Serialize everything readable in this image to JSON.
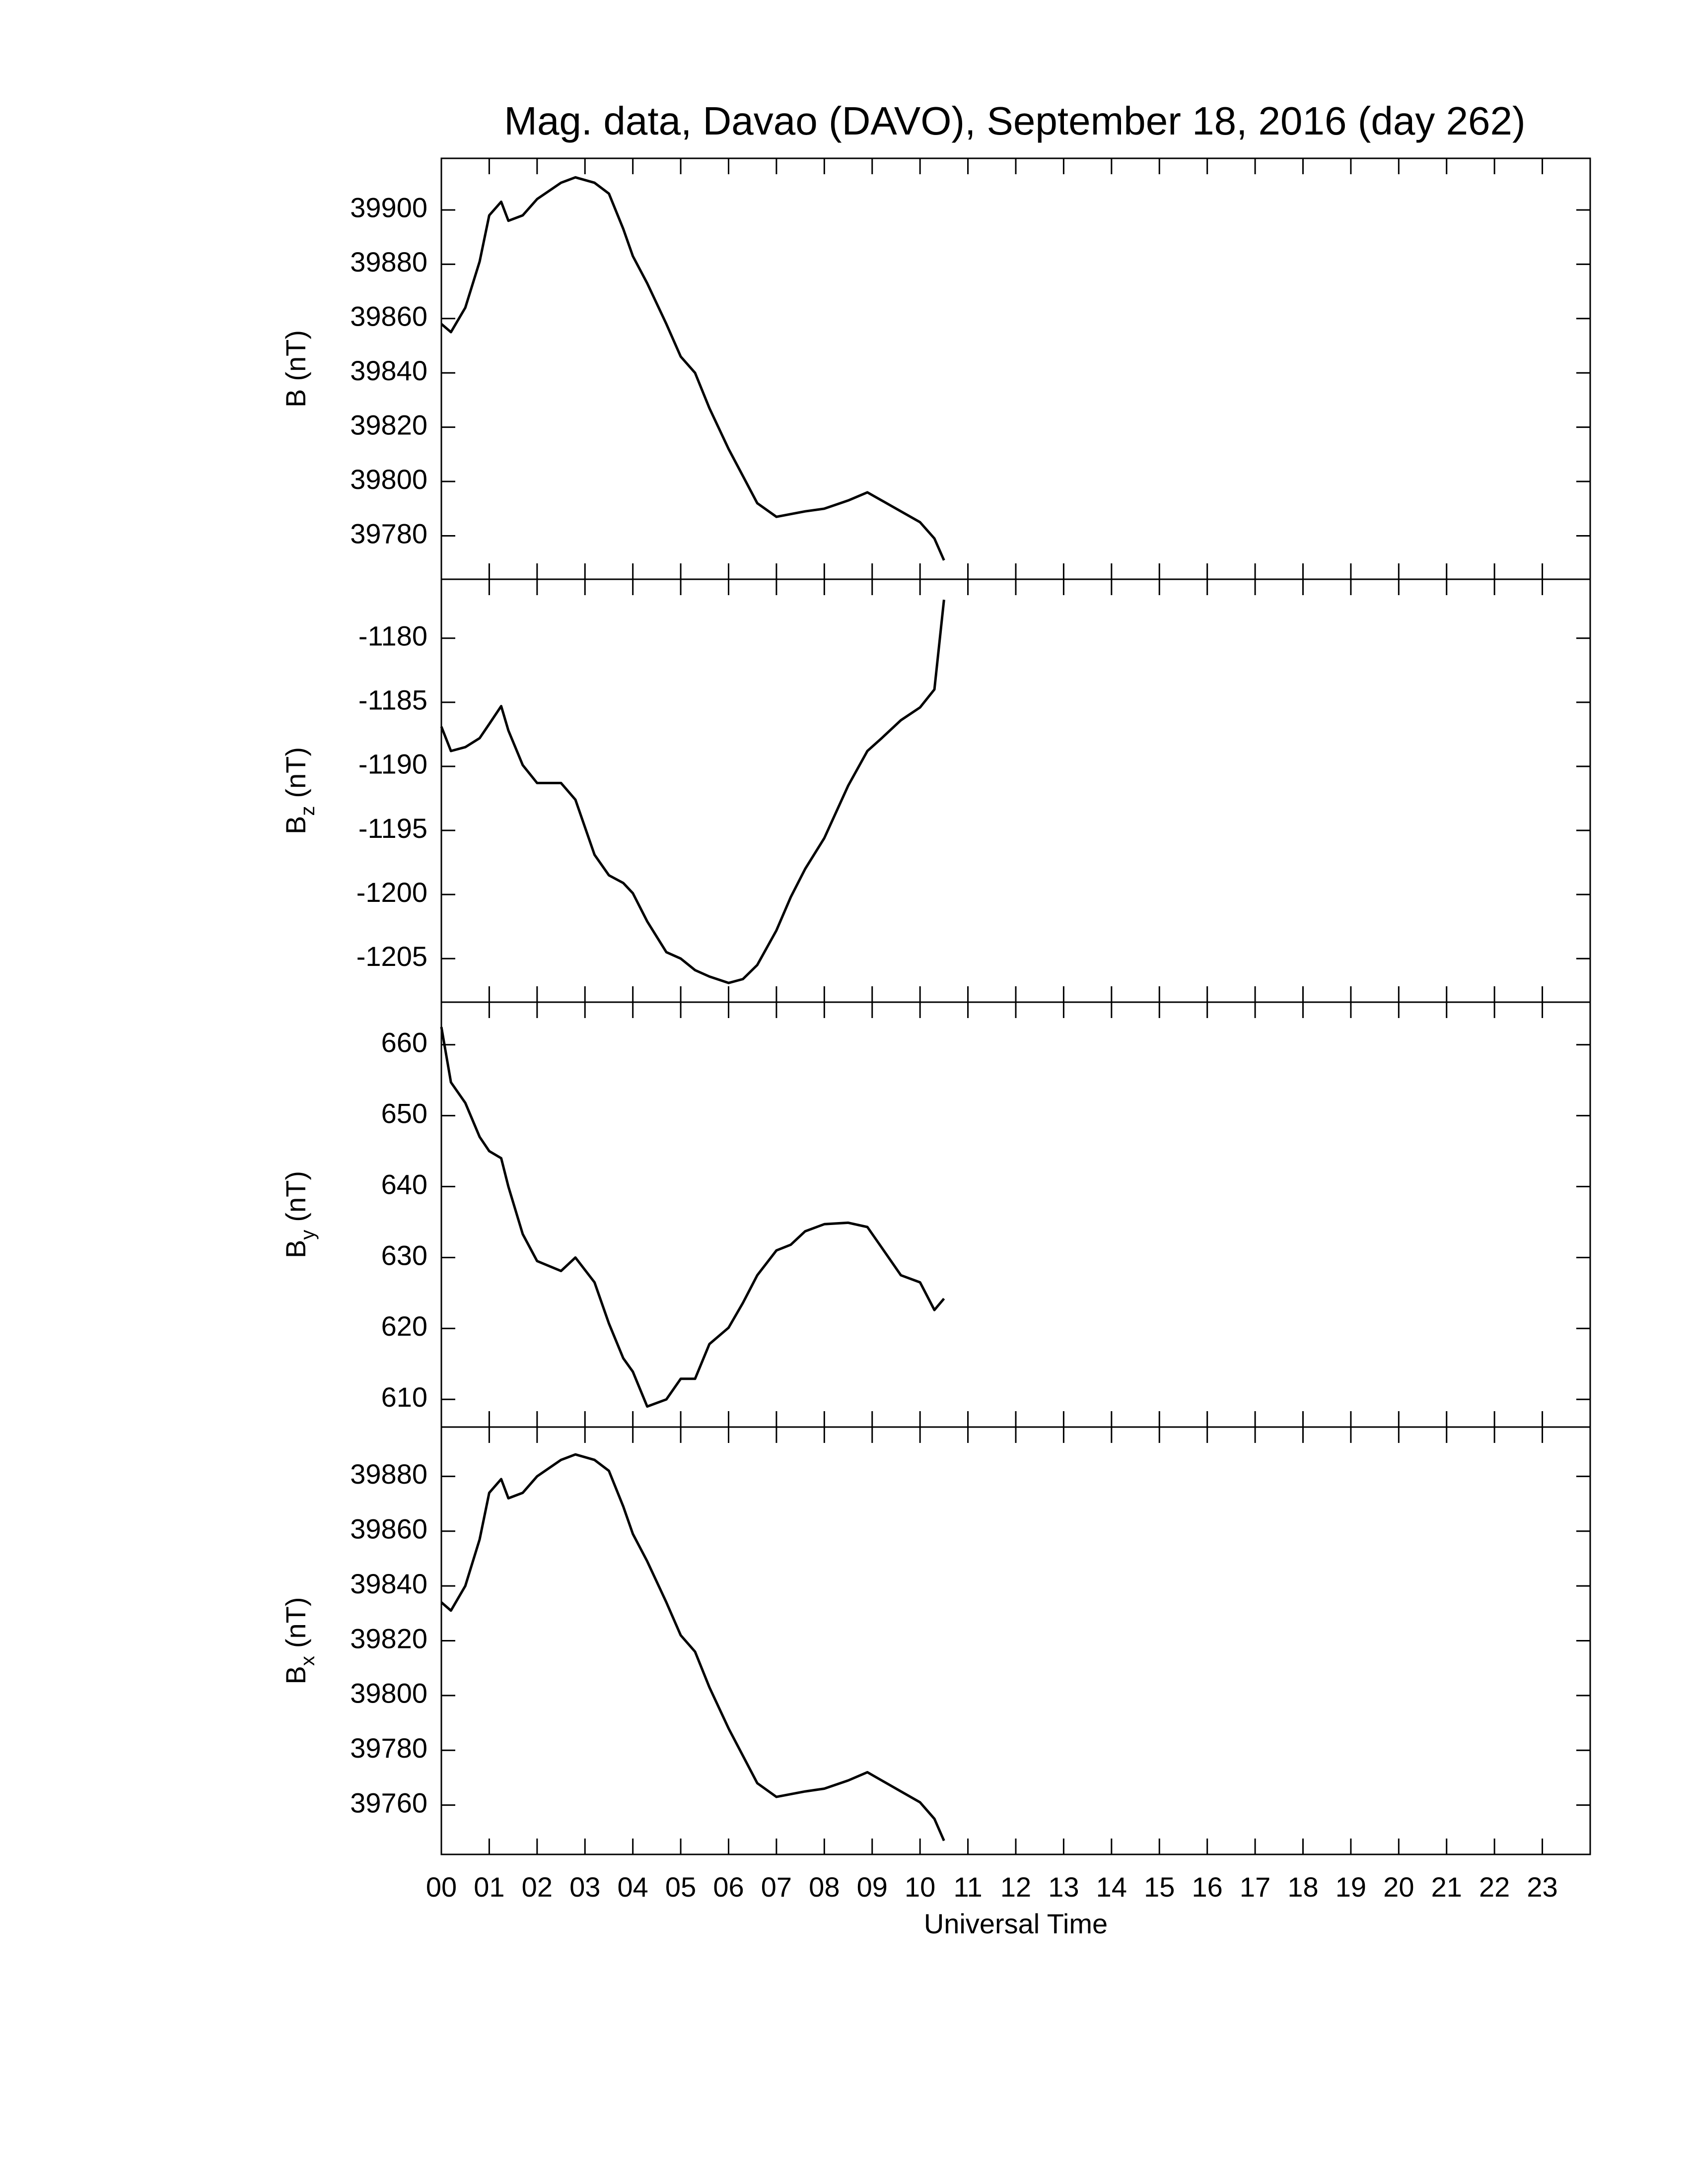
{
  "chart_data": [
    {
      "type": "line",
      "title": "Mag. data, Davao (DAVO), September 18, 2016 (day 262)",
      "ylabel": {
        "main": "B",
        "unit": "(nT)"
      },
      "x": [
        0,
        0.2,
        0.5,
        0.8,
        1.0,
        1.25,
        1.4,
        1.7,
        2.0,
        2.5,
        2.8,
        3.2,
        3.5,
        3.8,
        4.0,
        4.3,
        4.7,
        5.0,
        5.3,
        5.6,
        6.0,
        6.3,
        6.6,
        7.0,
        7.3,
        7.6,
        8.0,
        8.5,
        8.9,
        9.2,
        9.6,
        10.0,
        10.3,
        10.5
      ],
      "values": [
        39858,
        39855,
        39864,
        39881,
        39898,
        39903,
        39896,
        39898,
        39904,
        39910,
        39912,
        39910,
        39906,
        39893,
        39883,
        39873,
        39858,
        39846,
        39840,
        39827,
        39812,
        39802,
        39792,
        39787,
        39788,
        39789,
        39790,
        39793,
        39796,
        39793,
        39789,
        39785,
        39779,
        39771
      ],
      "color": "#000000",
      "xlim": [
        0,
        24
      ],
      "xticks": [
        0,
        1,
        2,
        3,
        4,
        5,
        6,
        7,
        8,
        9,
        10,
        11,
        12,
        13,
        14,
        15,
        16,
        17,
        18,
        19,
        20,
        21,
        22,
        23
      ],
      "ylim": [
        39764,
        39919
      ],
      "yticks": [
        39780,
        39800,
        39820,
        39840,
        39860,
        39880,
        39900
      ]
    },
    {
      "type": "line",
      "ylabel": {
        "main": "B",
        "sub": "z",
        "unit": "(nT)"
      },
      "x": [
        0,
        0.2,
        0.5,
        0.8,
        1.0,
        1.25,
        1.4,
        1.7,
        2.0,
        2.5,
        2.8,
        3.2,
        3.5,
        3.8,
        4.0,
        4.3,
        4.7,
        5.0,
        5.3,
        5.6,
        6.0,
        6.3,
        6.6,
        7.0,
        7.3,
        7.6,
        8.0,
        8.5,
        8.9,
        9.2,
        9.6,
        10.0,
        10.3,
        10.5
      ],
      "values": [
        -1186.9,
        -1188.8,
        -1188.5,
        -1187.8,
        -1186.7,
        -1185.3,
        -1187.2,
        -1189.9,
        -1191.3,
        -1191.3,
        -1192.6,
        -1196.9,
        -1198.5,
        -1199.1,
        -1199.9,
        -1202.1,
        -1204.5,
        -1205.0,
        -1205.9,
        -1206.4,
        -1206.9,
        -1206.6,
        -1205.5,
        -1202.8,
        -1200.2,
        -1198.0,
        -1195.6,
        -1191.5,
        -1188.8,
        -1187.8,
        -1186.4,
        -1185.4,
        -1184.0,
        -1177.0
      ],
      "color": "#000000",
      "xlim": [
        0,
        24
      ],
      "xticks": [
        0,
        1,
        2,
        3,
        4,
        5,
        6,
        7,
        8,
        9,
        10,
        11,
        12,
        13,
        14,
        15,
        16,
        17,
        18,
        19,
        20,
        21,
        22,
        23
      ],
      "ylim": [
        -1208.4,
        -1175.4
      ],
      "yticks": [
        -1205,
        -1200,
        -1195,
        -1190,
        -1185,
        -1180
      ]
    },
    {
      "type": "line",
      "ylabel": {
        "main": "B",
        "sub": "y",
        "unit": "(nT)"
      },
      "x": [
        0,
        0.2,
        0.5,
        0.8,
        1.0,
        1.25,
        1.4,
        1.7,
        2.0,
        2.5,
        2.8,
        3.2,
        3.5,
        3.8,
        4.0,
        4.3,
        4.7,
        5.0,
        5.3,
        5.6,
        6.0,
        6.3,
        6.6,
        7.0,
        7.3,
        7.6,
        8.0,
        8.5,
        8.9,
        9.2,
        9.6,
        10.0,
        10.3,
        10.5
      ],
      "values": [
        662.5,
        654.7,
        651.8,
        647,
        645,
        644,
        640,
        633.3,
        629.5,
        628.1,
        630,
        626.5,
        620.7,
        615.8,
        613.9,
        609,
        610,
        612.9,
        612.9,
        617.8,
        620.1,
        623.6,
        627.5,
        631,
        631.8,
        633.7,
        634.7,
        634.9,
        634.3,
        631.4,
        627.5,
        626.5,
        622.6,
        624.2
      ],
      "color": "#000000",
      "xlim": [
        0,
        24
      ],
      "xticks": [
        0,
        1,
        2,
        3,
        4,
        5,
        6,
        7,
        8,
        9,
        10,
        11,
        12,
        13,
        14,
        15,
        16,
        17,
        18,
        19,
        20,
        21,
        22,
        23
      ],
      "ylim": [
        606.1,
        666.0
      ],
      "yticks": [
        610,
        620,
        630,
        640,
        650,
        660
      ]
    },
    {
      "type": "line",
      "ylabel": {
        "main": "B",
        "sub": "x",
        "unit": "(nT)"
      },
      "xlabel": "Universal Time",
      "x": [
        0,
        0.2,
        0.5,
        0.8,
        1.0,
        1.25,
        1.4,
        1.7,
        2.0,
        2.5,
        2.8,
        3.2,
        3.5,
        3.8,
        4.0,
        4.3,
        4.7,
        5.0,
        5.3,
        5.6,
        6.0,
        6.3,
        6.6,
        7.0,
        7.3,
        7.6,
        8.0,
        8.5,
        8.9,
        9.2,
        9.6,
        10.0,
        10.3,
        10.5
      ],
      "values": [
        39834,
        39831,
        39840,
        39857,
        39874,
        39879,
        39872,
        39874,
        39880,
        39886,
        39888,
        39886,
        39882,
        39869,
        39859,
        39849,
        39834,
        39822,
        39816,
        39803,
        39788,
        39778,
        39768,
        39763,
        39764,
        39765,
        39766,
        39769,
        39772,
        39769,
        39765,
        39761,
        39755,
        39747
      ],
      "color": "#000000",
      "xlim": [
        0,
        24
      ],
      "xticks": [
        {
          "value": 0,
          "label": "00"
        },
        {
          "value": 1,
          "label": "01"
        },
        {
          "value": 2,
          "label": "02"
        },
        {
          "value": 3,
          "label": "03"
        },
        {
          "value": 4,
          "label": "04"
        },
        {
          "value": 5,
          "label": "05"
        },
        {
          "value": 6,
          "label": "06"
        },
        {
          "value": 7,
          "label": "07"
        },
        {
          "value": 8,
          "label": "08"
        },
        {
          "value": 9,
          "label": "09"
        },
        10,
        11,
        12,
        13,
        14,
        15,
        16,
        17,
        18,
        19,
        20,
        21,
        22,
        23
      ],
      "ylim": [
        39742,
        39898
      ],
      "yticks": [
        39760,
        39780,
        39800,
        39820,
        39840,
        39860,
        39880
      ]
    }
  ]
}
